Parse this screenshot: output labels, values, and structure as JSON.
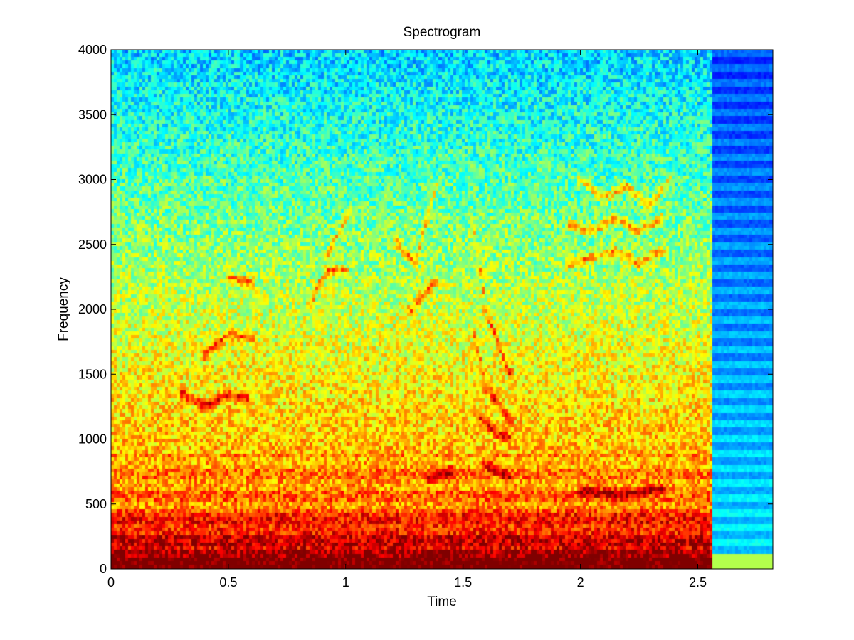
{
  "chart_data": {
    "type": "heatmap",
    "title": "Spectrogram",
    "xlabel": "Time",
    "ylabel": "Frequency",
    "xlim": [
      0,
      2.82
    ],
    "ylim": [
      0,
      4000
    ],
    "x_ticks": [
      0,
      0.5,
      1,
      1.5,
      2,
      2.5
    ],
    "x_tick_labels": [
      "0",
      "0.5",
      "1",
      "1.5",
      "2",
      "2.5"
    ],
    "y_ticks": [
      0,
      500,
      1000,
      1500,
      2000,
      2500,
      3000,
      3500,
      4000
    ],
    "y_tick_labels": [
      "0",
      "500",
      "1000",
      "1500",
      "2000",
      "2500",
      "3000",
      "3500",
      "4000"
    ],
    "colormap": "jet",
    "grid": false,
    "legend": "none",
    "signal_end_time": 2.56,
    "formant_tracks": [
      {
        "points": [
          [
            0.3,
            1350
          ],
          [
            0.4,
            1250
          ],
          [
            0.5,
            1340
          ],
          [
            0.58,
            1310
          ]
        ]
      },
      {
        "points": [
          [
            0.4,
            1650
          ],
          [
            0.5,
            1800
          ],
          [
            0.6,
            1780
          ]
        ]
      },
      {
        "points": [
          [
            0.5,
            2250
          ],
          [
            0.6,
            2200
          ]
        ]
      },
      {
        "points": [
          [
            0.85,
            2050
          ],
          [
            0.92,
            2300
          ],
          [
            1.0,
            2300
          ]
        ]
      },
      {
        "points": [
          [
            0.92,
            2400
          ],
          [
            1.02,
            2750
          ]
        ]
      },
      {
        "points": [
          [
            1.22,
            2500
          ],
          [
            1.3,
            2350
          ],
          [
            1.35,
            2700
          ],
          [
            1.4,
            3000
          ]
        ]
      },
      {
        "points": [
          [
            1.28,
            2000
          ],
          [
            1.33,
            2100
          ],
          [
            1.38,
            2200
          ]
        ]
      },
      {
        "points": [
          [
            1.55,
            2600
          ],
          [
            1.6,
            2000
          ],
          [
            1.7,
            1500
          ]
        ]
      },
      {
        "points": [
          [
            1.55,
            1800
          ],
          [
            1.6,
            1400
          ],
          [
            1.7,
            1150
          ]
        ]
      },
      {
        "points": [
          [
            1.58,
            1150
          ],
          [
            1.65,
            1050
          ],
          [
            1.7,
            1000
          ]
        ]
      },
      {
        "points": [
          [
            1.6,
            800
          ],
          [
            1.7,
            700
          ]
        ]
      },
      {
        "points": [
          [
            1.95,
            2350
          ],
          [
            2.05,
            2400
          ],
          [
            2.15,
            2450
          ],
          [
            2.25,
            2350
          ],
          [
            2.35,
            2450
          ]
        ]
      },
      {
        "points": [
          [
            1.95,
            2650
          ],
          [
            2.05,
            2600
          ],
          [
            2.15,
            2700
          ],
          [
            2.25,
            2600
          ],
          [
            2.35,
            2700
          ]
        ]
      },
      {
        "points": [
          [
            2.0,
            3000
          ],
          [
            2.1,
            2850
          ],
          [
            2.2,
            2950
          ],
          [
            2.3,
            2800
          ],
          [
            2.38,
            3000
          ]
        ]
      },
      {
        "points": [
          [
            1.35,
            700
          ],
          [
            1.45,
            750
          ]
        ]
      },
      {
        "points": [
          [
            2.0,
            600
          ],
          [
            2.2,
            570
          ],
          [
            2.35,
            620
          ]
        ]
      }
    ],
    "palette": {
      "background": "#ffffff",
      "axis": "#000000",
      "text": "#000000"
    }
  }
}
